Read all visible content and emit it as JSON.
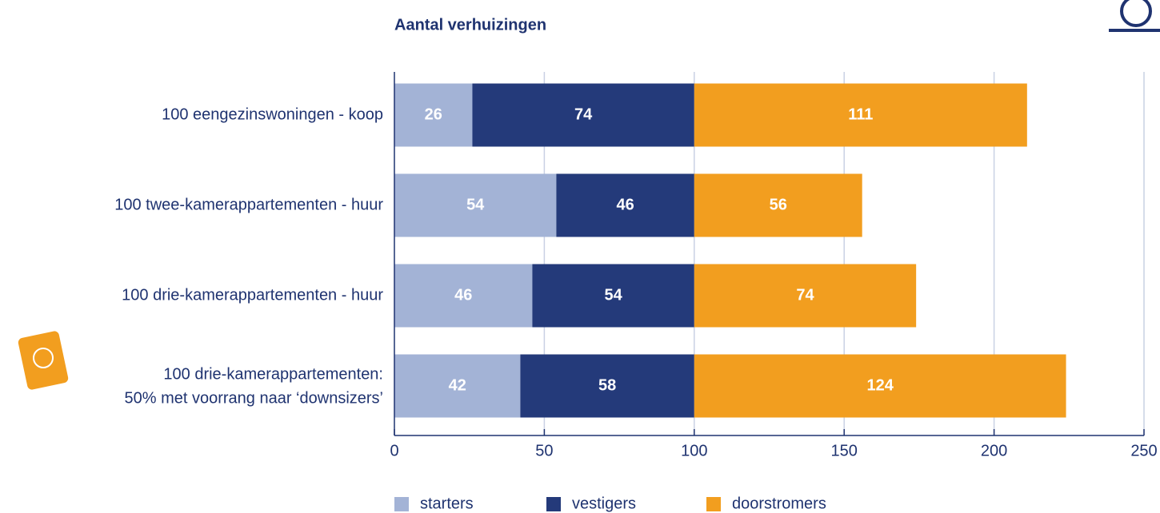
{
  "chart_data": {
    "type": "bar",
    "orientation": "horizontal",
    "stacked": true,
    "title": "Aantal verhuizingen",
    "categories": [
      "100 eengezinswoningen - koop",
      "100 twee-kamerappartementen - huur",
      "100 drie-kamerappartementen - huur",
      [
        "100 drie-kamerappartementen:",
        "50% met voorrang naar ‘downsizers’"
      ]
    ],
    "series": [
      {
        "name": "starters",
        "color": "#a3b3d6",
        "values": [
          26,
          54,
          46,
          42
        ]
      },
      {
        "name": "vestigers",
        "color": "#243a7a",
        "values": [
          74,
          46,
          54,
          58
        ]
      },
      {
        "name": "doorstromers",
        "color": "#f29e1f",
        "values": [
          111,
          56,
          74,
          124
        ]
      }
    ],
    "xlim": [
      0,
      250
    ],
    "xticks": [
      0,
      50,
      100,
      150,
      200,
      250
    ],
    "grid": true
  }
}
